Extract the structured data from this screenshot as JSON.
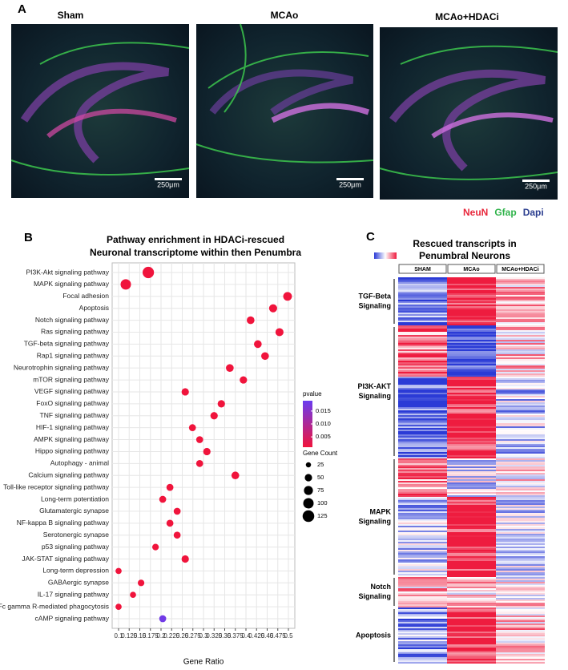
{
  "panel_a": {
    "label": "A",
    "titles": [
      "Sham",
      "MCAo",
      "MCAo+HDACi"
    ],
    "scale_bar": "250μm",
    "stains": [
      {
        "name": "NeuN",
        "color": "#e8283c"
      },
      {
        "name": "Gfap",
        "color": "#2fb34a"
      },
      {
        "name": "Dapi",
        "color": "#2a3d8f"
      }
    ]
  },
  "panel_b_label": "B",
  "chart_data": {
    "type": "scatter",
    "title": [
      "Pathway enrichment in HDACi-rescued",
      "Neuronal transcriptome within then Penumbra"
    ],
    "x_label": "Gene Ratio",
    "categories": [
      "PI3K-Akt signaling pathway",
      "MAPK signaling pathway",
      "Focal adhesion",
      "Apoptosis",
      "Notch signaling pathway",
      "Ras signaling pathway",
      "TGF-beta signaling pathway",
      "Rap1 signaling pathway",
      "Neurotrophin signaling pathway",
      "mTOR signaling pathway",
      "VEGF signaling pathway",
      "FoxO signaling pathway",
      "TNF signaling pathway",
      "HIF-1 signaling pathway",
      "AMPK signaling pathway",
      "Hippo signaling pathway",
      "Autophagy - animal",
      "Calcium signaling pathway",
      "Toll-like receptor signaling pathway",
      "Long-term potentiation",
      "Glutamatergic synapse",
      "NF-kappa B signaling pathway",
      "Serotonergic synapse",
      "p53 signaling pathway",
      "JAK-STAT signaling pathway",
      "Long-term depression",
      "GABAergic synapse",
      "IL-17 signaling pathway",
      "Fc gamma R-mediated phagocytosis",
      "cAMP signaling pathway"
    ],
    "x": [
      0.17,
      0.117,
      0.498,
      0.464,
      0.411,
      0.479,
      0.428,
      0.445,
      0.362,
      0.394,
      0.257,
      0.342,
      0.325,
      0.274,
      0.291,
      0.308,
      0.291,
      0.375,
      0.221,
      0.204,
      0.238,
      0.221,
      0.238,
      0.187,
      0.257,
      0.1,
      0.153,
      0.134,
      0.1,
      0.204
    ],
    "sizes": [
      120,
      100,
      70,
      60,
      55,
      60,
      55,
      55,
      55,
      50,
      50,
      50,
      50,
      45,
      45,
      50,
      45,
      55,
      45,
      45,
      45,
      45,
      45,
      40,
      50,
      35,
      40,
      35,
      35,
      45
    ],
    "pvalues": [
      0.001,
      0.001,
      0.001,
      0.001,
      0.001,
      0.001,
      0.001,
      0.001,
      0.001,
      0.001,
      0.001,
      0.001,
      0.001,
      0.001,
      0.001,
      0.001,
      0.001,
      0.001,
      0.001,
      0.001,
      0.001,
      0.001,
      0.001,
      0.001,
      0.001,
      0.001,
      0.001,
      0.001,
      0.001,
      0.018
    ],
    "xlim": [
      0.1,
      0.5
    ],
    "xticks": [
      0.1,
      0.125,
      0.15,
      0.175,
      0.2,
      0.225,
      0.25,
      0.275,
      0.3,
      0.325,
      0.35,
      0.375,
      0.4,
      0.425,
      0.45,
      0.475,
      0.5
    ],
    "grid": true,
    "color_legend": {
      "title": "pvalue",
      "clim": [
        0.001,
        0.019
      ],
      "colors": [
        "#f0143c",
        "#6a3cf0"
      ],
      "ticks": [
        0.015,
        {
          "value": 0.01,
          "label": "0.010"
        },
        0.005
      ]
    },
    "size_legend": {
      "title": "Gene Count",
      "values": [
        25,
        50,
        75,
        100,
        125
      ]
    }
  },
  "panel_c": {
    "label": "C",
    "title": [
      "Rescued transcripts in",
      "Penumbral Neurons"
    ],
    "columns": [
      "SHAM",
      "MCAo",
      "MCAo+HDACi"
    ],
    "groups": [
      [
        "TGF-Beta",
        "Signaling"
      ],
      [
        "PI3K-AKT",
        "Signaling"
      ],
      [
        "MAPK",
        "Signaling"
      ],
      [
        "Notch",
        "Signaling"
      ],
      [
        "Apoptosis"
      ]
    ]
  }
}
